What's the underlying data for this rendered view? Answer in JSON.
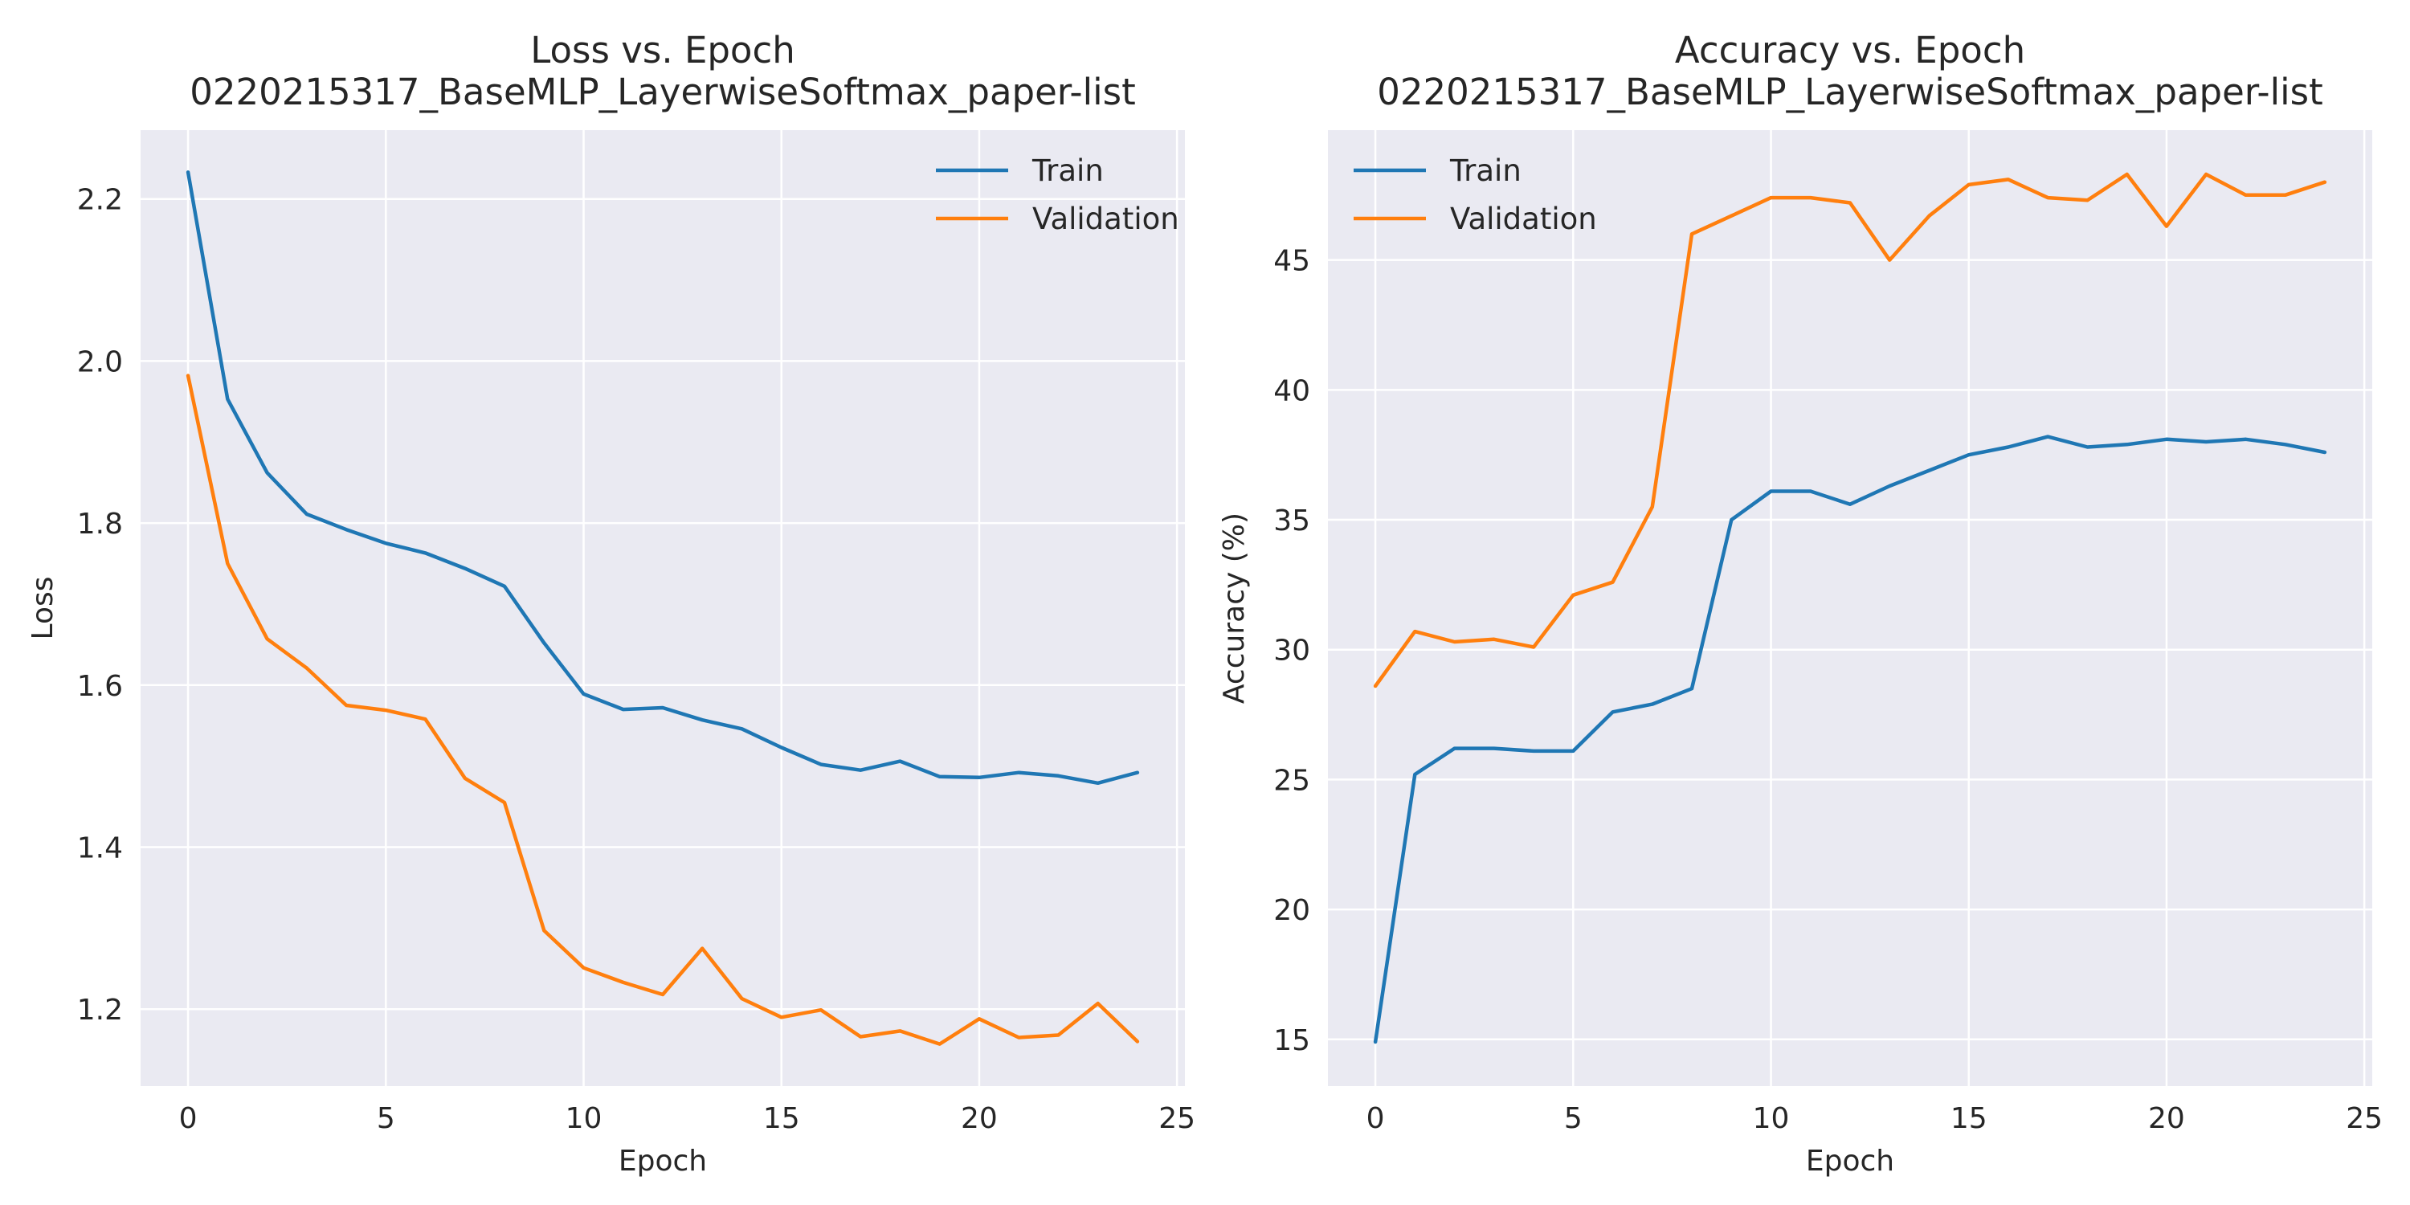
{
  "chart_data": [
    {
      "type": "line",
      "title": "Loss vs. Epoch\n0220215317_BaseMLP_LayerwiseSoftmax_paper-list",
      "xlabel": "Epoch",
      "ylabel": "Loss",
      "xlim": [
        -1.2,
        25.2
      ],
      "ylim": [
        1.105,
        2.285
      ],
      "xticks": [
        0,
        5,
        10,
        15,
        20,
        25
      ],
      "yticks": [
        1.2,
        1.4,
        1.6,
        1.8,
        2.0,
        2.2
      ],
      "ytick_labels": [
        "1.2",
        "1.4",
        "1.6",
        "1.8",
        "2.0",
        "2.2"
      ],
      "grid": true,
      "legend_position": "upper right",
      "x": [
        0,
        1,
        2,
        3,
        4,
        5,
        6,
        7,
        8,
        9,
        10,
        11,
        12,
        13,
        14,
        15,
        16,
        17,
        18,
        19,
        20,
        21,
        22,
        23,
        24
      ],
      "series": [
        {
          "name": "Train",
          "color": "#1f77b4",
          "values": [
            2.233,
            1.953,
            1.862,
            1.811,
            1.792,
            1.775,
            1.763,
            1.744,
            1.722,
            1.652,
            1.589,
            1.57,
            1.572,
            1.557,
            1.546,
            1.523,
            1.502,
            1.495,
            1.506,
            1.487,
            1.486,
            1.492,
            1.488,
            1.479,
            1.492
          ]
        },
        {
          "name": "Validation",
          "color": "#ff7f0e",
          "values": [
            1.982,
            1.75,
            1.657,
            1.621,
            1.575,
            1.569,
            1.558,
            1.485,
            1.455,
            1.297,
            1.251,
            1.233,
            1.218,
            1.275,
            1.213,
            1.19,
            1.199,
            1.166,
            1.173,
            1.157,
            1.188,
            1.165,
            1.168,
            1.207,
            1.16
          ]
        }
      ]
    },
    {
      "type": "line",
      "title": "Accuracy vs. Epoch\n0220215317_BaseMLP_LayerwiseSoftmax_paper-list",
      "xlabel": "Epoch",
      "ylabel": "Accuracy (%)",
      "xlim": [
        -1.2,
        25.2
      ],
      "ylim": [
        13.2,
        50.0
      ],
      "xticks": [
        0,
        5,
        10,
        15,
        20,
        25
      ],
      "yticks": [
        15,
        20,
        25,
        30,
        35,
        40,
        45
      ],
      "ytick_labels": [
        "15",
        "20",
        "25",
        "30",
        "35",
        "40",
        "45"
      ],
      "grid": true,
      "legend_position": "upper left",
      "x": [
        0,
        1,
        2,
        3,
        4,
        5,
        6,
        7,
        8,
        9,
        10,
        11,
        12,
        13,
        14,
        15,
        16,
        17,
        18,
        19,
        20,
        21,
        22,
        23,
        24
      ],
      "series": [
        {
          "name": "Train",
          "color": "#1f77b4",
          "values": [
            14.9,
            25.2,
            26.2,
            26.2,
            26.1,
            26.1,
            27.6,
            27.9,
            28.5,
            35.0,
            36.1,
            36.1,
            35.6,
            36.3,
            36.9,
            37.5,
            37.8,
            38.2,
            37.8,
            37.9,
            38.1,
            38.0,
            38.1,
            37.9,
            37.6
          ]
        },
        {
          "name": "Validation",
          "color": "#ff7f0e",
          "values": [
            28.6,
            30.7,
            30.3,
            30.4,
            30.1,
            32.1,
            32.6,
            35.5,
            46.0,
            46.7,
            47.4,
            47.4,
            47.2,
            45.0,
            46.7,
            47.9,
            48.1,
            47.4,
            47.3,
            48.3,
            46.3,
            48.3,
            47.5,
            47.5,
            48.0
          ]
        }
      ]
    }
  ]
}
